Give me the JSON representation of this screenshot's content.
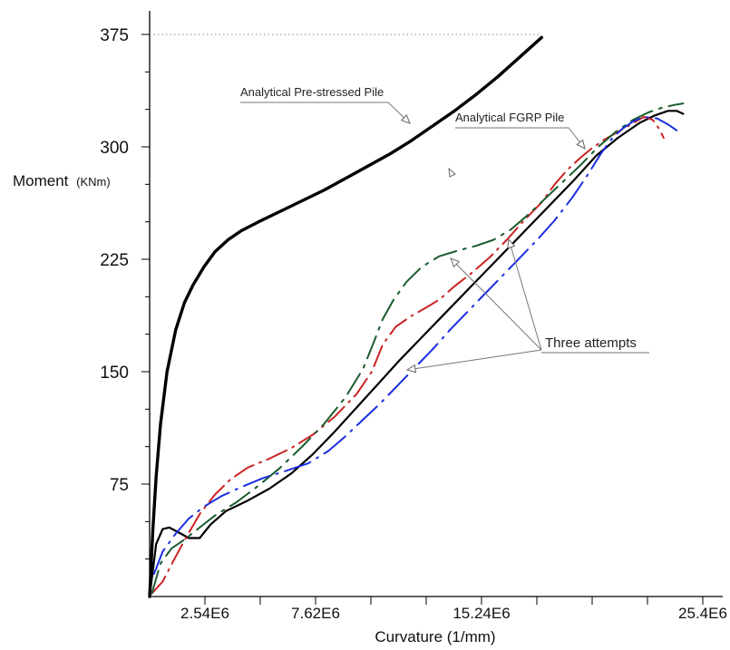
{
  "chart_data": {
    "type": "line",
    "title": "",
    "ylabel": {
      "main": "Moment",
      "unit": "(KNm)"
    },
    "xlabel": "Curvature (1/mm)",
    "ylim": [
      0,
      375
    ],
    "xlim": [
      0,
      25.4
    ],
    "y_ticks": [
      {
        "value": 75,
        "label": "75"
      },
      {
        "value": 150,
        "label": "150"
      },
      {
        "value": 225,
        "label": "225"
      },
      {
        "value": 300,
        "label": "300"
      },
      {
        "value": 375,
        "label": "375"
      }
    ],
    "x_ticks": [
      {
        "value": 2.54,
        "label": "2.54E6"
      },
      {
        "value": 7.62,
        "label": "7.62E6"
      },
      {
        "value": 15.24,
        "label": "15.24E6"
      },
      {
        "value": 25.4,
        "label": "25.4E6"
      }
    ],
    "x_minor_ticks": [
      2.54,
      5.08,
      7.62,
      10.16,
      12.7,
      15.24,
      17.78,
      20.32,
      22.86,
      25.4
    ],
    "y_minor_ticks": [
      25,
      50,
      75,
      100,
      125,
      150,
      175,
      200,
      225,
      250,
      275,
      300,
      325,
      350
    ],
    "grid": false,
    "annotations": [
      {
        "id": "prestressed",
        "text": "Analytical Pre-stressed Pile"
      },
      {
        "id": "fgrp",
        "text": "Analytical FGRP Pile"
      },
      {
        "id": "attempts",
        "text": "Three attempts"
      }
    ],
    "series": [
      {
        "color": "#000000",
        "x": [
          0,
          0.15,
          0.3,
          0.5,
          0.8,
          1.2,
          1.6,
          2.0,
          2.5,
          3.0,
          3.6,
          4.2,
          5.0,
          6.0,
          7.0,
          8.0,
          9.0,
          10.0,
          11.0,
          12.0,
          13.0,
          14.0,
          15.0,
          16.0,
          17.0,
          18.0
        ],
        "y": [
          0,
          45,
          80,
          115,
          150,
          178,
          196,
          208,
          220,
          230,
          238,
          244,
          250,
          257,
          264,
          271,
          279,
          287,
          295,
          304,
          314,
          324,
          335,
          347,
          360,
          373
        ]
      },
      {
        "color": "#000000",
        "x": [
          0,
          0.3,
          0.6,
          0.9,
          1.3,
          1.8,
          2.3,
          2.8,
          3.5,
          4.5,
          5.5,
          6.5,
          7.5,
          8.5,
          9.5,
          10.5,
          11.5,
          12.5,
          13.5,
          14.5,
          15.5,
          16.5,
          17.5,
          18.5,
          19.5,
          20.5,
          21.5,
          22.5,
          23.2,
          23.8,
          24.2,
          24.5
        ],
        "y": [
          0,
          35,
          45,
          46,
          43,
          39,
          39,
          48,
          57,
          64,
          72,
          82,
          95,
          110,
          126,
          142,
          158,
          173,
          188,
          203,
          218,
          233,
          248,
          263,
          278,
          294,
          306,
          316,
          321,
          324,
          324,
          322
        ]
      },
      {
        "color": "#cc2222",
        "x": [
          0.1,
          0.6,
          1.1,
          1.7,
          2.3,
          3.0,
          3.7,
          4.5,
          5.5,
          6.5,
          7.5,
          8.5,
          9.5,
          10.2,
          10.7,
          11.3,
          12.0,
          12.6,
          13.3,
          14.0,
          14.8,
          15.6,
          16.4,
          17.2,
          18.0,
          18.6,
          19.2,
          19.8,
          20.3,
          20.9,
          21.5,
          22.1,
          22.7,
          23.1,
          23.4,
          23.6
        ],
        "y": [
          2,
          10,
          24,
          40,
          55,
          68,
          78,
          86,
          92,
          99,
          108,
          120,
          135,
          150,
          168,
          180,
          187,
          192,
          198,
          207,
          216,
          226,
          238,
          251,
          263,
          275,
          285,
          293,
          299,
          305,
          310,
          315,
          320,
          318,
          312,
          306
        ]
      },
      {
        "color": "#1a5c2e",
        "x": [
          0.1,
          0.5,
          1.0,
          1.6,
          2.3,
          3.0,
          4.0,
          5.0,
          6.0,
          7.0,
          8.0,
          9.0,
          9.8,
          10.3,
          10.7,
          11.2,
          11.8,
          12.5,
          13.3,
          14.2,
          15.0,
          15.8,
          16.6,
          17.4,
          18.2,
          19.0,
          19.8,
          20.6,
          21.4,
          22.2,
          22.9,
          23.5,
          24.1,
          24.5
        ],
        "y": [
          2,
          22,
          32,
          38,
          46,
          54,
          63,
          74,
          86,
          100,
          115,
          133,
          152,
          170,
          185,
          198,
          210,
          220,
          227,
          231,
          234,
          238,
          245,
          255,
          266,
          277,
          288,
          300,
          310,
          318,
          323,
          326,
          328,
          329
        ]
      },
      {
        "color": "#1a2ee0",
        "x": [
          0.2,
          0.6,
          1.2,
          1.8,
          2.5,
          3.3,
          4.2,
          5.2,
          6.3,
          7.3,
          8.2,
          9.0,
          9.8,
          10.6,
          11.4,
          12.2,
          13.0,
          13.8,
          14.6,
          15.4,
          16.2,
          17.0,
          17.8,
          18.6,
          19.4,
          20.1,
          20.7,
          21.2,
          21.7,
          22.2,
          22.7,
          23.3,
          23.8,
          24.2
        ],
        "y": [
          15,
          30,
          42,
          52,
          60,
          67,
          73,
          79,
          84,
          89,
          97,
          107,
          118,
          129,
          141,
          153,
          165,
          178,
          190,
          202,
          214,
          226,
          238,
          251,
          266,
          281,
          295,
          305,
          312,
          317,
          320,
          319,
          315,
          311
        ]
      }
    ]
  }
}
